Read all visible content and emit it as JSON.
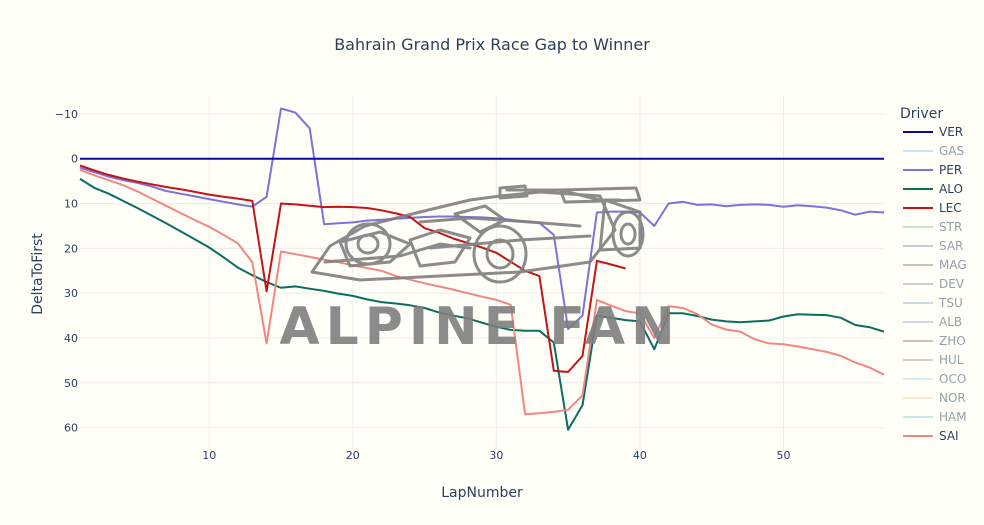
{
  "chart_data": {
    "type": "line",
    "title": "Bahrain Grand Prix Race Gap to Winner",
    "xlabel": "LapNumber",
    "ylabel": "DeltaToFirst",
    "xlim": [
      1,
      57
    ],
    "ylim": [
      -14,
      65
    ],
    "y_reversed": true,
    "x_ticks": [
      10,
      20,
      30,
      40,
      50
    ],
    "y_ticks": [
      -10,
      0,
      10,
      20,
      30,
      40,
      50,
      60
    ],
    "grid": true,
    "legend_title": "Driver",
    "legend_position": "right",
    "watermark": "ALPINE FAN",
    "series": [
      {
        "name": "VER",
        "color": "#0a0aa0",
        "visible": true,
        "x": [
          1,
          57
        ],
        "y": [
          0,
          0
        ]
      },
      {
        "name": "GAS",
        "color": "#8ecaf0",
        "visible": false,
        "x": [],
        "y": []
      },
      {
        "name": "PER",
        "color": "#7b72dc",
        "visible": true,
        "x": [
          1,
          2,
          3,
          4,
          5,
          6,
          7,
          8,
          9,
          10,
          11,
          12,
          13,
          14,
          15,
          16,
          17,
          18,
          19,
          20,
          21,
          22,
          23,
          24,
          25,
          26,
          27,
          28,
          29,
          30,
          31,
          32,
          33,
          34,
          35,
          36,
          37,
          38,
          39,
          40,
          41,
          42,
          43,
          44,
          45,
          46,
          47,
          48,
          49,
          50,
          51,
          52,
          53,
          54,
          55,
          56,
          57
        ],
        "y": [
          2,
          3,
          4,
          4.8,
          5.4,
          6.2,
          7.2,
          7.8,
          8.4,
          9,
          9.6,
          10.2,
          10.7,
          8.5,
          -11.2,
          -10.3,
          -6.8,
          14.6,
          14.4,
          14.2,
          13.8,
          13.6,
          13.4,
          13.2,
          13,
          12.9,
          12.9,
          13,
          13.1,
          13.3,
          13.6,
          14,
          14.3,
          17,
          38,
          35,
          12,
          11.8,
          11.8,
          12,
          15,
          10,
          9.6,
          10.3,
          10.2,
          10.6,
          10.3,
          10.2,
          10.3,
          10.7,
          10.4,
          10.6,
          10.9,
          11.5,
          12.5,
          11.8,
          12
        ]
      },
      {
        "name": "ALO",
        "color": "#0a6e5e",
        "visible": true,
        "x": [
          1,
          2,
          3,
          4,
          5,
          6,
          7,
          8,
          9,
          10,
          11,
          12,
          13,
          14,
          15,
          16,
          17,
          18,
          19,
          20,
          21,
          22,
          23,
          24,
          25,
          26,
          27,
          28,
          29,
          30,
          31,
          32,
          33,
          34,
          35,
          36,
          37,
          38,
          39,
          40,
          41,
          42,
          43,
          44,
          45,
          46,
          47,
          48,
          49,
          50,
          51,
          52,
          53,
          54,
          55,
          56,
          57
        ],
        "y": [
          4.5,
          6.5,
          7.8,
          9.4,
          11,
          12.7,
          14.4,
          16.2,
          18,
          19.8,
          22,
          24.3,
          26,
          27.5,
          28.8,
          28.5,
          29,
          29.5,
          30.1,
          30.6,
          31.4,
          32,
          32.3,
          32.7,
          33.3,
          34.3,
          35,
          35.6,
          36.6,
          37.5,
          38.2,
          38.4,
          38.4,
          41,
          60.5,
          55,
          35,
          35.5,
          36,
          36.3,
          42.5,
          34.5,
          34.5,
          35.1,
          35.9,
          36.3,
          36.5,
          36.3,
          36.1,
          35.2,
          34.7,
          34.8,
          34.9,
          35.5,
          37.1,
          37.6,
          38.6
        ]
      },
      {
        "name": "LEC",
        "color": "#c41417",
        "visible": true,
        "x": [
          1,
          2,
          3,
          4,
          5,
          6,
          7,
          8,
          9,
          10,
          11,
          12,
          13,
          14,
          15,
          16,
          17,
          18,
          19,
          20,
          21,
          22,
          23,
          24,
          25,
          26,
          27,
          28,
          29,
          30,
          31,
          32,
          33,
          34,
          35,
          36,
          37,
          38,
          39
        ],
        "y": [
          1.5,
          2.6,
          3.6,
          4.4,
          5.1,
          5.7,
          6.3,
          6.8,
          7.4,
          8,
          8.5,
          8.9,
          9.4,
          29.6,
          10,
          10.2,
          10.5,
          10.8,
          10.7,
          10.8,
          11,
          11.5,
          12.2,
          13,
          15.5,
          16.5,
          17.8,
          18.8,
          19.8,
          21,
          23,
          25,
          26.2,
          47.3,
          47.6,
          44,
          22.8,
          23.6,
          24.5
        ]
      },
      {
        "name": "STR",
        "color": "#8ed18e",
        "visible": false,
        "x": [],
        "y": []
      },
      {
        "name": "SAR",
        "color": "#8c9bb0",
        "visible": false,
        "x": [],
        "y": []
      },
      {
        "name": "MAG",
        "color": "#8a8a8a",
        "visible": false,
        "x": [],
        "y": []
      },
      {
        "name": "DEV",
        "color": "#9aa0a8",
        "visible": false,
        "x": [],
        "y": []
      },
      {
        "name": "TSU",
        "color": "#98b4d4",
        "visible": false,
        "x": [],
        "y": []
      },
      {
        "name": "ALB",
        "color": "#8eaee6",
        "visible": false,
        "x": [],
        "y": []
      },
      {
        "name": "ZHO",
        "color": "#a08080",
        "visible": false,
        "x": [],
        "y": []
      },
      {
        "name": "HUL",
        "color": "#a0a0a0",
        "visible": false,
        "x": [],
        "y": []
      },
      {
        "name": "OCO",
        "color": "#a8d8f0",
        "visible": false,
        "x": [],
        "y": []
      },
      {
        "name": "NOR",
        "color": "#f5d2a0",
        "visible": false,
        "x": [],
        "y": []
      },
      {
        "name": "HAM",
        "color": "#80d8d0",
        "visible": false,
        "x": [],
        "y": []
      },
      {
        "name": "SAI",
        "color": "#f28682",
        "visible": true,
        "x": [
          1,
          2,
          3,
          4,
          5,
          6,
          7,
          8,
          9,
          10,
          11,
          12,
          13,
          14,
          15,
          16,
          17,
          18,
          19,
          20,
          21,
          22,
          23,
          24,
          25,
          26,
          27,
          28,
          29,
          30,
          31,
          32,
          33,
          34,
          35,
          36,
          37,
          38,
          39,
          40,
          41,
          42,
          43,
          44,
          45,
          46,
          47,
          48,
          49,
          50,
          51,
          52,
          53,
          54,
          55,
          56,
          57
        ],
        "y": [
          2.5,
          3.7,
          4.8,
          5.9,
          7.3,
          8.9,
          10.5,
          12.1,
          13.7,
          15.2,
          17,
          18.9,
          23.1,
          41.2,
          20.7,
          21.3,
          21.9,
          22.5,
          23.1,
          23.8,
          24.4,
          25,
          26.2,
          27,
          27.8,
          28.5,
          29.2,
          30,
          30.8,
          31.5,
          32.6,
          57,
          56.8,
          56.5,
          56,
          52.8,
          31.5,
          32.8,
          34,
          34.5,
          40,
          32.9,
          33.3,
          34.7,
          37,
          38.1,
          38.6,
          40.3,
          41.2,
          41.4,
          41.9,
          42.5,
          43.1,
          44,
          45.5,
          46.6,
          48.2
        ]
      }
    ]
  }
}
